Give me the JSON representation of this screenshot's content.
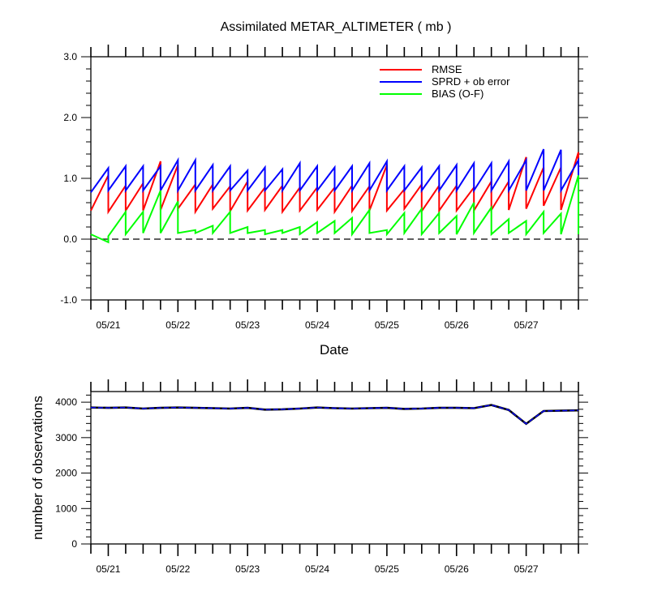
{
  "chart_data": [
    {
      "type": "line",
      "title": "Assimilated METAR_ALTIMETER ( mb )",
      "xlabel": "Date",
      "ylabel": "",
      "xlim": [
        0,
        28
      ],
      "ylim": [
        -1.0,
        3.0
      ],
      "y_ticks": [
        -1.0,
        0.0,
        1.0,
        2.0,
        3.0
      ],
      "y_tick_labels": [
        "-1.0",
        "0.0",
        "1.0",
        "2.0",
        "3.0"
      ],
      "x_ticks": [
        1,
        5,
        9,
        13,
        17,
        21,
        25
      ],
      "x_tick_labels": [
        "05/21",
        "05/22",
        "05/23",
        "05/24",
        "05/25",
        "05/26",
        "05/27"
      ],
      "zero_line": true,
      "legend_position": "top-right",
      "series": [
        {
          "name": "RMSE",
          "color": "#ff0000",
          "prior": [
            0.47,
            0.45,
            0.47,
            0.47,
            0.48,
            0.5,
            0.45,
            0.5,
            0.46,
            0.47,
            0.48,
            0.45,
            0.47,
            0.48,
            0.45,
            0.46,
            0.47,
            0.47,
            0.5,
            0.46,
            0.47,
            0.47,
            0.47,
            0.48,
            0.48,
            0.5,
            0.55,
            0.48,
            0.48
          ],
          "posterior": [
            1.05,
            0.88,
            0.92,
            1.28,
            1.22,
            0.9,
            0.9,
            0.87,
            0.95,
            0.85,
            0.88,
            0.85,
            0.85,
            0.85,
            0.88,
            0.87,
            1.22,
            0.82,
            0.9,
            0.88,
            0.88,
            0.85,
            0.95,
            0.95,
            1.35,
            1.18,
            1.18,
            1.43
          ]
        },
        {
          "name": "SPRD + ob error",
          "color": "#0000ff",
          "prior": [
            0.77,
            0.8,
            0.8,
            0.8,
            0.8,
            0.8,
            0.8,
            0.8,
            0.8,
            0.8,
            0.8,
            0.8,
            0.8,
            0.8,
            0.8,
            0.8,
            0.8,
            0.8,
            0.8,
            0.8,
            0.8,
            0.8,
            0.8,
            0.8,
            0.8,
            0.8,
            0.8,
            0.8,
            0.8
          ],
          "posterior": [
            1.17,
            1.2,
            1.2,
            1.2,
            1.3,
            1.3,
            1.22,
            1.2,
            1.13,
            1.18,
            1.15,
            1.25,
            1.2,
            1.18,
            1.2,
            1.25,
            1.28,
            1.2,
            1.18,
            1.2,
            1.22,
            1.25,
            1.25,
            1.28,
            1.3,
            1.48,
            1.47,
            1.3
          ]
        },
        {
          "name": "BIAS (O-F)",
          "color": "#00ff00",
          "prior": [
            0.08,
            0.05,
            0.08,
            0.1,
            0.1,
            0.1,
            0.1,
            0.1,
            0.1,
            0.1,
            0.08,
            0.1,
            0.08,
            0.1,
            0.1,
            0.08,
            0.1,
            0.08,
            0.1,
            0.08,
            0.1,
            0.08,
            0.1,
            0.08,
            0.1,
            0.08,
            0.1,
            0.08,
            0.08
          ],
          "posterior": [
            -0.05,
            0.45,
            0.45,
            0.8,
            0.62,
            0.15,
            0.22,
            0.45,
            0.2,
            0.15,
            0.15,
            0.2,
            0.28,
            0.3,
            0.35,
            0.48,
            0.15,
            0.43,
            0.5,
            0.43,
            0.38,
            0.6,
            0.52,
            0.33,
            0.3,
            0.45,
            0.42,
            1.05
          ]
        }
      ]
    },
    {
      "type": "line",
      "title": "",
      "xlabel": "",
      "ylabel": "number of observations",
      "xlim": [
        0,
        28
      ],
      "ylim": [
        0,
        4300
      ],
      "y_ticks": [
        0,
        1000,
        2000,
        3000,
        4000
      ],
      "y_tick_labels": [
        "0",
        "1000",
        "2000",
        "3000",
        "4000"
      ],
      "x_ticks": [
        1,
        5,
        9,
        13,
        17,
        21,
        25
      ],
      "x_tick_labels": [
        "05/21",
        "05/22",
        "05/23",
        "05/24",
        "05/25",
        "05/26",
        "05/27"
      ],
      "series": [
        {
          "name": "",
          "color": "#0000ff",
          "x": [
            0,
            1,
            2,
            3,
            4,
            5,
            6,
            7,
            8,
            9,
            10,
            11,
            12,
            13,
            14,
            15,
            16,
            17,
            18,
            19,
            20,
            21,
            22,
            23,
            24,
            25,
            26,
            27,
            28
          ],
          "values": [
            3850,
            3840,
            3850,
            3820,
            3840,
            3850,
            3840,
            3830,
            3820,
            3840,
            3790,
            3800,
            3820,
            3850,
            3830,
            3820,
            3830,
            3840,
            3810,
            3820,
            3840,
            3840,
            3830,
            3920,
            3780,
            3390,
            3750,
            3760,
            3770
          ]
        }
      ]
    }
  ]
}
